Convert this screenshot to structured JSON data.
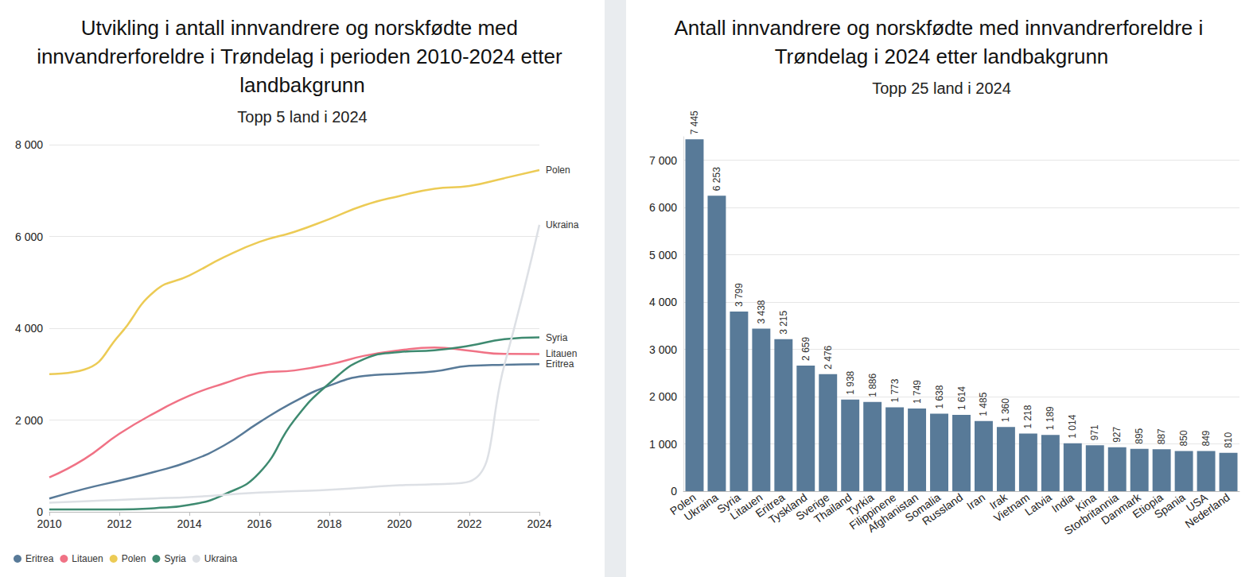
{
  "chart_data": [
    {
      "type": "line",
      "title": "Utvikling i antall innvandrere og norskfødte med innvandrerforeldre i Trøndelag i perioden 2010-2024 etter landbakgrunn",
      "subtitle": "Topp 5 land i 2024",
      "x": [
        2010,
        2011,
        2012,
        2013,
        2014,
        2015,
        2016,
        2017,
        2018,
        2019,
        2020,
        2021,
        2022,
        2023,
        2024
      ],
      "series": [
        {
          "name": "Eritrea",
          "color": "#587a98",
          "values": [
            290,
            500,
            680,
            870,
            1100,
            1450,
            1950,
            2400,
            2750,
            2960,
            3010,
            3060,
            3180,
            3205,
            3215
          ]
        },
        {
          "name": "Litauen",
          "color": "#f07285",
          "values": [
            750,
            1150,
            1700,
            2150,
            2530,
            2800,
            3020,
            3080,
            3210,
            3400,
            3520,
            3580,
            3510,
            3440,
            3438
          ]
        },
        {
          "name": "Polen",
          "color": "#eccb55",
          "values": [
            3000,
            3100,
            3850,
            4800,
            5150,
            5550,
            5880,
            6100,
            6380,
            6680,
            6880,
            7040,
            7100,
            7270,
            7445
          ]
        },
        {
          "name": "Syria",
          "color": "#3e8a70",
          "values": [
            50,
            50,
            50,
            80,
            150,
            380,
            850,
            2000,
            2800,
            3330,
            3480,
            3520,
            3620,
            3760,
            3799
          ]
        },
        {
          "name": "Ukraina",
          "color": "#dde0e5",
          "values": [
            200,
            230,
            260,
            290,
            320,
            370,
            420,
            450,
            480,
            530,
            580,
            600,
            660,
            3200,
            6253
          ]
        }
      ],
      "xlim": [
        2010,
        2024
      ],
      "xticks": [
        2010,
        2012,
        2014,
        2016,
        2018,
        2020,
        2022,
        2024
      ],
      "ylim": [
        0,
        8000
      ],
      "yticks": [
        0,
        {
          "value": 2000,
          "label": "2 000"
        },
        {
          "value": 4000,
          "label": "4 000"
        },
        {
          "value": 6000,
          "label": "6 000"
        },
        {
          "value": 8000,
          "label": "8 000"
        }
      ],
      "grid": true,
      "legend": "lower left"
    },
    {
      "type": "bar",
      "title": "Antall innvandrere og norskfødte med innvandrerforeldre i Trøndelag i 2024 etter landbakgrunn",
      "subtitle": "Topp 25 land i 2024",
      "categories": [
        "Polen",
        "Ukraina",
        "Syria",
        "Litauen",
        "Eritrea",
        "Tyskland",
        "Sverige",
        "Thailand",
        "Tyrkia",
        "Filippinene",
        "Afghanistan",
        "Somalia",
        "Russland",
        "Iran",
        "Irak",
        "Vietnam",
        "Latvia",
        "India",
        "Kina",
        "Storbritannia",
        "Danmark",
        "Etiopia",
        "Spania",
        "USA",
        "Nederland"
      ],
      "values": [
        7445,
        6253,
        3799,
        3438,
        3215,
        2659,
        2476,
        1938,
        1886,
        1773,
        1749,
        1638,
        1614,
        1485,
        1360,
        1218,
        1189,
        1014,
        971,
        927,
        895,
        887,
        850,
        849,
        810
      ],
      "value_labels": [
        "7 445",
        "6 253",
        "3 799",
        "3 438",
        "3 215",
        "2 659",
        "2 476",
        "1 938",
        "1 886",
        "1 773",
        "1 749",
        "1 638",
        "1 614",
        "1 485",
        "1 360",
        "1 218",
        "1 189",
        "1 014",
        "971",
        "927",
        "895",
        "887",
        "850",
        "849",
        "810"
      ],
      "color": "#587a98",
      "ylim": [
        0,
        7500
      ],
      "yticks": [
        0,
        {
          "value": 1000,
          "label": "1 000"
        },
        {
          "value": 2000,
          "label": "2 000"
        },
        {
          "value": 3000,
          "label": "3 000"
        },
        {
          "value": 4000,
          "label": "4 000"
        },
        {
          "value": 5000,
          "label": "5 000"
        },
        {
          "value": 6000,
          "label": "6 000"
        },
        {
          "value": 7000,
          "label": "7 000"
        }
      ],
      "grid": true,
      "data_labels": true
    }
  ]
}
